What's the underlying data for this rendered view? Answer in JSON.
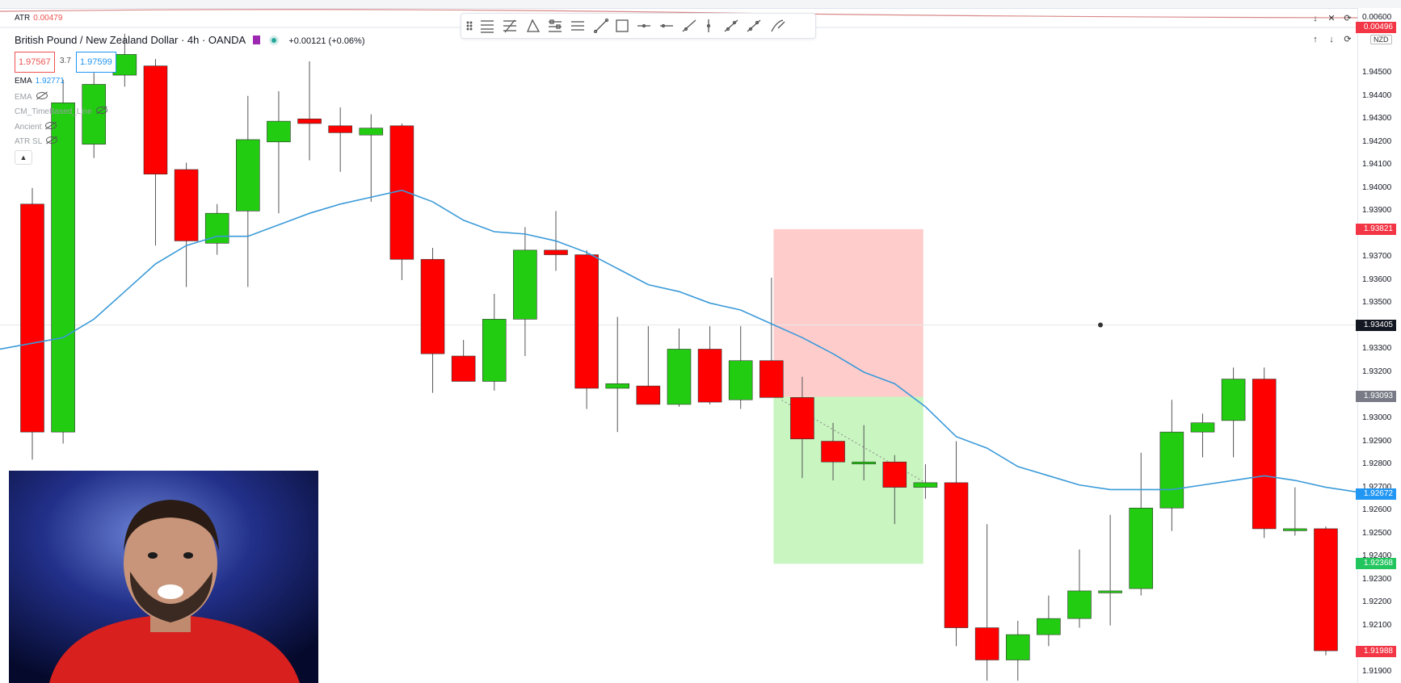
{
  "symbol": {
    "name": "British Pound / New Zealand Dollar",
    "timeframe": "4h",
    "broker": "OANDA",
    "change": "+0.00121 (+0.06%)",
    "sell_price": "1.97567",
    "spread": "3.7",
    "buy_price": "1.97599"
  },
  "indicators": [
    {
      "name": "EMA",
      "value": "1.92771",
      "hidden": false
    },
    {
      "name": "EMA",
      "value": "",
      "hidden": true
    },
    {
      "name": "CM_TimeBased_Line",
      "value": "",
      "hidden": true
    },
    {
      "name": "Ancient",
      "value": "",
      "hidden": true
    },
    {
      "name": "ATR SL",
      "value": "",
      "hidden": true
    }
  ],
  "atr_pane": {
    "label": "ATR",
    "value": "0.00479",
    "axis_top": "0.00600",
    "axis_marker": "0.00496"
  },
  "axis": {
    "currency": "NZD",
    "ticks": [
      "1.94500",
      "1.94400",
      "1.94300",
      "1.94200",
      "1.94100",
      "1.94000",
      "1.93900",
      "1.93700",
      "1.93600",
      "1.93500",
      "1.93300",
      "1.93200",
      "1.93000",
      "1.92900",
      "1.92800",
      "1.92700",
      "1.92600",
      "1.92500",
      "1.92400",
      "1.92300",
      "1.92200",
      "1.92100",
      "1.91900"
    ],
    "price_labels": [
      {
        "price": 1.93821,
        "text": "1.93821",
        "color": "#f23645"
      },
      {
        "price": 1.93405,
        "text": "1.93405",
        "color": "#131722"
      },
      {
        "price": 1.93093,
        "text": "1.93093",
        "color": "#787b86"
      },
      {
        "price": 1.92672,
        "text": "1.92672",
        "color": "#2196f3"
      },
      {
        "price": 1.92368,
        "text": "1.92368",
        "color": "#22c55e"
      },
      {
        "price": 1.91988,
        "text": "1.91988",
        "color": "#f23645"
      }
    ]
  },
  "colors": {
    "up": "#22cc11",
    "down": "#ff0000",
    "wick": "#555555",
    "ema": "#3a9ad9",
    "stop_zone": "#ffcccc",
    "target_zone": "#c8f5c0"
  },
  "chart_data": {
    "type": "candlestick",
    "title": "British Pound / New Zealand Dollar · 4h · OANDA",
    "ylim": [
      1.9185,
      1.9462
    ],
    "candles": [
      {
        "o": 1.9393,
        "h": 1.94,
        "l": 1.9282,
        "c": 1.9294
      },
      {
        "o": 1.9294,
        "h": 1.9447,
        "l": 1.9289,
        "c": 1.9437
      },
      {
        "o": 1.9419,
        "h": 1.945,
        "l": 1.9413,
        "c": 1.9445
      },
      {
        "o": 1.9449,
        "h": 1.9467,
        "l": 1.9444,
        "c": 1.9458
      },
      {
        "o": 1.9453,
        "h": 1.9456,
        "l": 1.9375,
        "c": 1.9406
      },
      {
        "o": 1.9408,
        "h": 1.9411,
        "l": 1.9357,
        "c": 1.9377
      },
      {
        "o": 1.9376,
        "h": 1.9393,
        "l": 1.9371,
        "c": 1.9389
      },
      {
        "o": 1.939,
        "h": 1.944,
        "l": 1.9357,
        "c": 1.9421
      },
      {
        "o": 1.942,
        "h": 1.9442,
        "l": 1.9389,
        "c": 1.9429
      },
      {
        "o": 1.943,
        "h": 1.9455,
        "l": 1.9412,
        "c": 1.9428
      },
      {
        "o": 1.9427,
        "h": 1.9435,
        "l": 1.9407,
        "c": 1.9424
      },
      {
        "o": 1.9423,
        "h": 1.9432,
        "l": 1.9394,
        "c": 1.9426
      },
      {
        "o": 1.9427,
        "h": 1.9428,
        "l": 1.936,
        "c": 1.9369
      },
      {
        "o": 1.9369,
        "h": 1.9374,
        "l": 1.9311,
        "c": 1.9328
      },
      {
        "o": 1.9327,
        "h": 1.9334,
        "l": 1.9316,
        "c": 1.9316
      },
      {
        "o": 1.9316,
        "h": 1.9354,
        "l": 1.9312,
        "c": 1.9343
      },
      {
        "o": 1.9343,
        "h": 1.9383,
        "l": 1.9327,
        "c": 1.9373
      },
      {
        "o": 1.9373,
        "h": 1.939,
        "l": 1.9364,
        "c": 1.9371
      },
      {
        "o": 1.9371,
        "h": 1.9373,
        "l": 1.9304,
        "c": 1.9313
      },
      {
        "o": 1.9313,
        "h": 1.9344,
        "l": 1.9294,
        "c": 1.9315
      },
      {
        "o": 1.9314,
        "h": 1.934,
        "l": 1.9307,
        "c": 1.9306
      },
      {
        "o": 1.9306,
        "h": 1.9339,
        "l": 1.9305,
        "c": 1.933
      },
      {
        "o": 1.933,
        "h": 1.934,
        "l": 1.9306,
        "c": 1.9307
      },
      {
        "o": 1.9308,
        "h": 1.934,
        "l": 1.9304,
        "c": 1.9325
      },
      {
        "o": 1.9325,
        "h": 1.9361,
        "l": 1.9311,
        "c": 1.9309
      },
      {
        "o": 1.9309,
        "h": 1.9318,
        "l": 1.9274,
        "c": 1.9291
      },
      {
        "o": 1.929,
        "h": 1.9298,
        "l": 1.9273,
        "c": 1.9281
      },
      {
        "o": 1.9281,
        "h": 1.9297,
        "l": 1.9273,
        "c": 1.9281
      },
      {
        "o": 1.9281,
        "h": 1.9284,
        "l": 1.9254,
        "c": 1.927
      },
      {
        "o": 1.927,
        "h": 1.928,
        "l": 1.9265,
        "c": 1.9272
      },
      {
        "o": 1.9272,
        "h": 1.929,
        "l": 1.9201,
        "c": 1.9209
      },
      {
        "o": 1.9209,
        "h": 1.9254,
        "l": 1.9186,
        "c": 1.9195
      },
      {
        "o": 1.9195,
        "h": 1.9212,
        "l": 1.9186,
        "c": 1.9206
      },
      {
        "o": 1.9206,
        "h": 1.9223,
        "l": 1.9201,
        "c": 1.9213
      },
      {
        "o": 1.9213,
        "h": 1.9243,
        "l": 1.9209,
        "c": 1.9225
      },
      {
        "o": 1.9225,
        "h": 1.9258,
        "l": 1.921,
        "c": 1.9225
      },
      {
        "o": 1.9226,
        "h": 1.9285,
        "l": 1.9223,
        "c": 1.9261
      },
      {
        "o": 1.9261,
        "h": 1.9308,
        "l": 1.9251,
        "c": 1.9294
      },
      {
        "o": 1.9294,
        "h": 1.9302,
        "l": 1.9283,
        "c": 1.9298
      },
      {
        "o": 1.9299,
        "h": 1.9322,
        "l": 1.9283,
        "c": 1.9317
      },
      {
        "o": 1.9317,
        "h": 1.9322,
        "l": 1.9248,
        "c": 1.9252
      },
      {
        "o": 1.9252,
        "h": 1.927,
        "l": 1.9249,
        "c": 1.9252
      },
      {
        "o": 1.9252,
        "h": 1.9253,
        "l": 1.9197,
        "c": 1.9199
      }
    ],
    "ema_line": [
      1.9335,
      1.9343,
      1.9355,
      1.9367,
      1.9375,
      1.9379,
      1.9379,
      1.9384,
      1.9389,
      1.9393,
      1.9396,
      1.9399,
      1.9394,
      1.9386,
      1.9381,
      1.938,
      1.9377,
      1.9372,
      1.9365,
      1.9358,
      1.9355,
      1.935,
      1.9347,
      1.9341,
      1.9335,
      1.9328,
      1.932,
      1.9315,
      1.9305,
      1.9292,
      1.9287,
      1.9279,
      1.9275,
      1.9271,
      1.9269,
      1.9269,
      1.9269,
      1.9271,
      1.9273,
      1.9275,
      1.9273,
      1.927,
      1.9268
    ],
    "position": {
      "type": "short",
      "entry": 1.93093,
      "stop": 1.93821,
      "target": 1.92368,
      "start_index": 25,
      "end_index": 28
    }
  }
}
